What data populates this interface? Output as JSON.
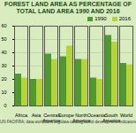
{
  "chart_data": {
    "type": "bar",
    "title": "FOREST LAND AREA AS PERCENTAGE OF TOTAL LAND AREA 1990 AND 2016",
    "caption": "UN FAO/FRA; data.worldbank.org/data-catalog/world-development-indicators",
    "categories": [
      "Africa",
      "Asia",
      "Central America",
      "Europe",
      "North America",
      "Oceania",
      "South America",
      "World"
    ],
    "series": [
      {
        "name": "1990",
        "color": "#4e9a2f",
        "values": [
          24,
          20,
          39,
          37,
          35,
          21,
          53,
          32
        ]
      },
      {
        "name": "2016",
        "color": "#b7d33a",
        "values": [
          21,
          20,
          35,
          45,
          35,
          20,
          48,
          31
        ]
      }
    ],
    "ylim": [
      0,
      60
    ],
    "yticks": [
      0,
      10,
      20,
      30,
      40,
      50,
      60
    ],
    "grid": true,
    "legend": "top-right"
  }
}
